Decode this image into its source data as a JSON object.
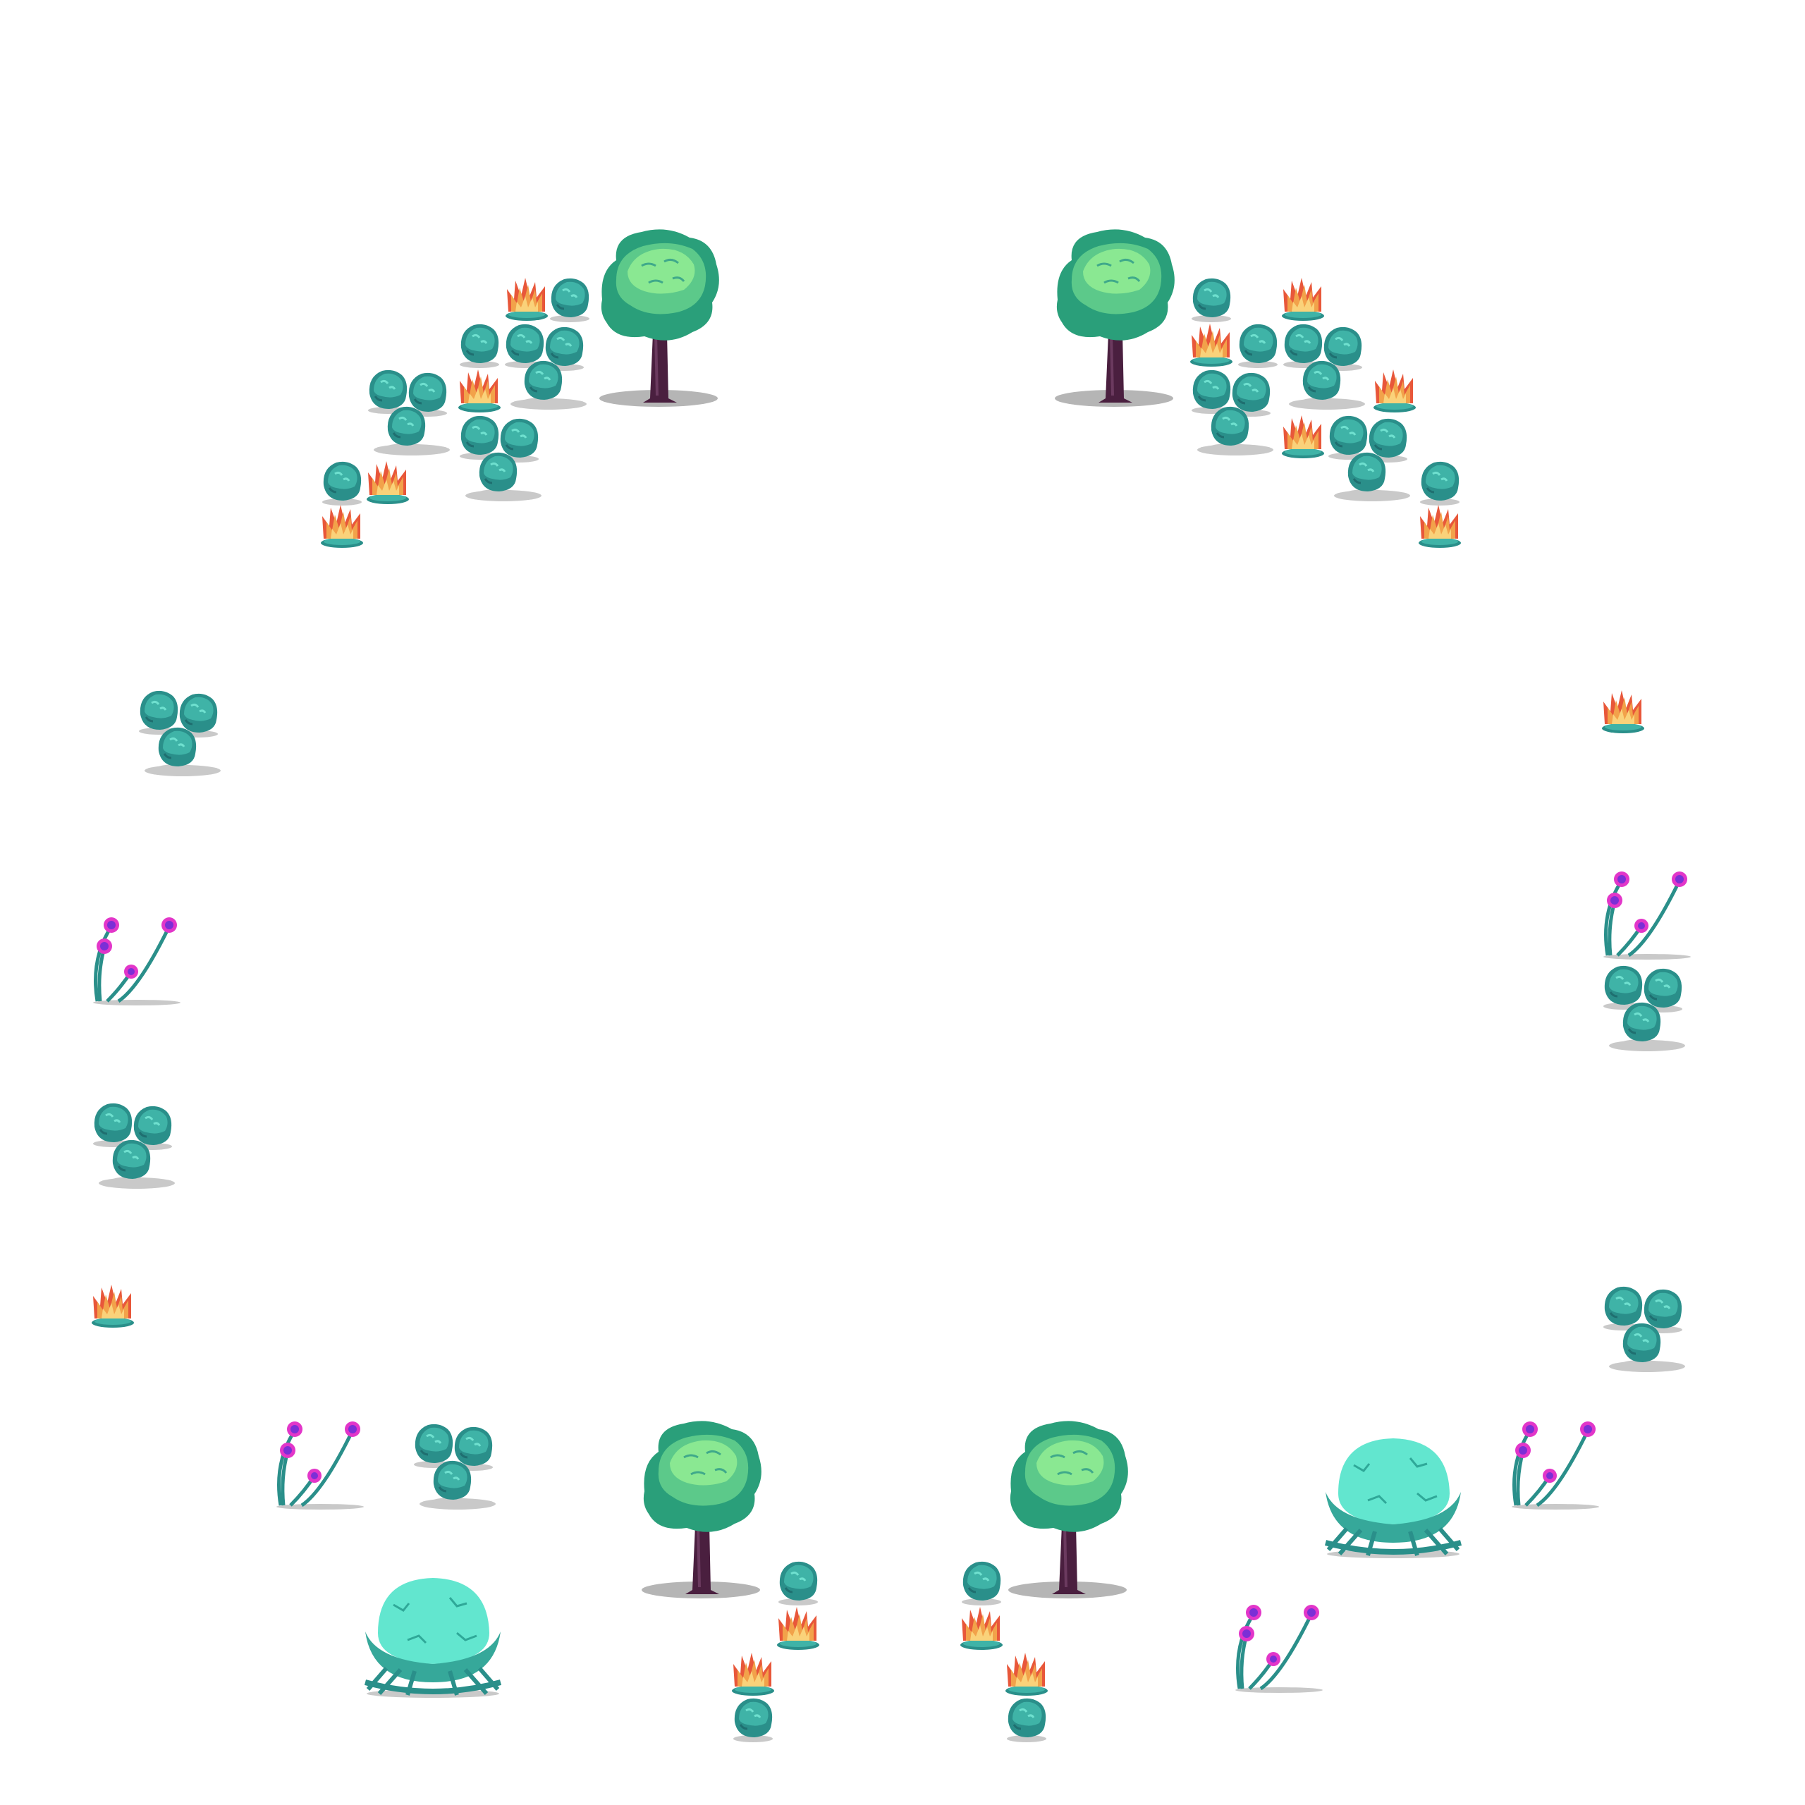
{
  "scene": {
    "background": "#ffffff",
    "palette": {
      "bush_dark": "#2a8f8a",
      "bush_light": "#3fb3a7",
      "bush_highlight": "#5fd3c2",
      "tree_canopy_dark": "#2a9f7a",
      "tree_canopy_light": "#7fe08a",
      "tree_trunk": "#4a1f3f",
      "shadow": "#b5b5b5",
      "flame_orange": "#f2a24a",
      "flame_red": "#e8573a",
      "flame_yellow": "#fad27a",
      "flower_stem": "#2a8f8a",
      "flower_pink": "#e236c9",
      "flower_purple": "#7b2fd6",
      "egg_shell": "#62e6cf",
      "egg_nest": "#36a89a"
    },
    "sprite_kinds": [
      "tree",
      "bush-cluster",
      "bush",
      "fire-bush",
      "flower",
      "egg-nest"
    ]
  }
}
